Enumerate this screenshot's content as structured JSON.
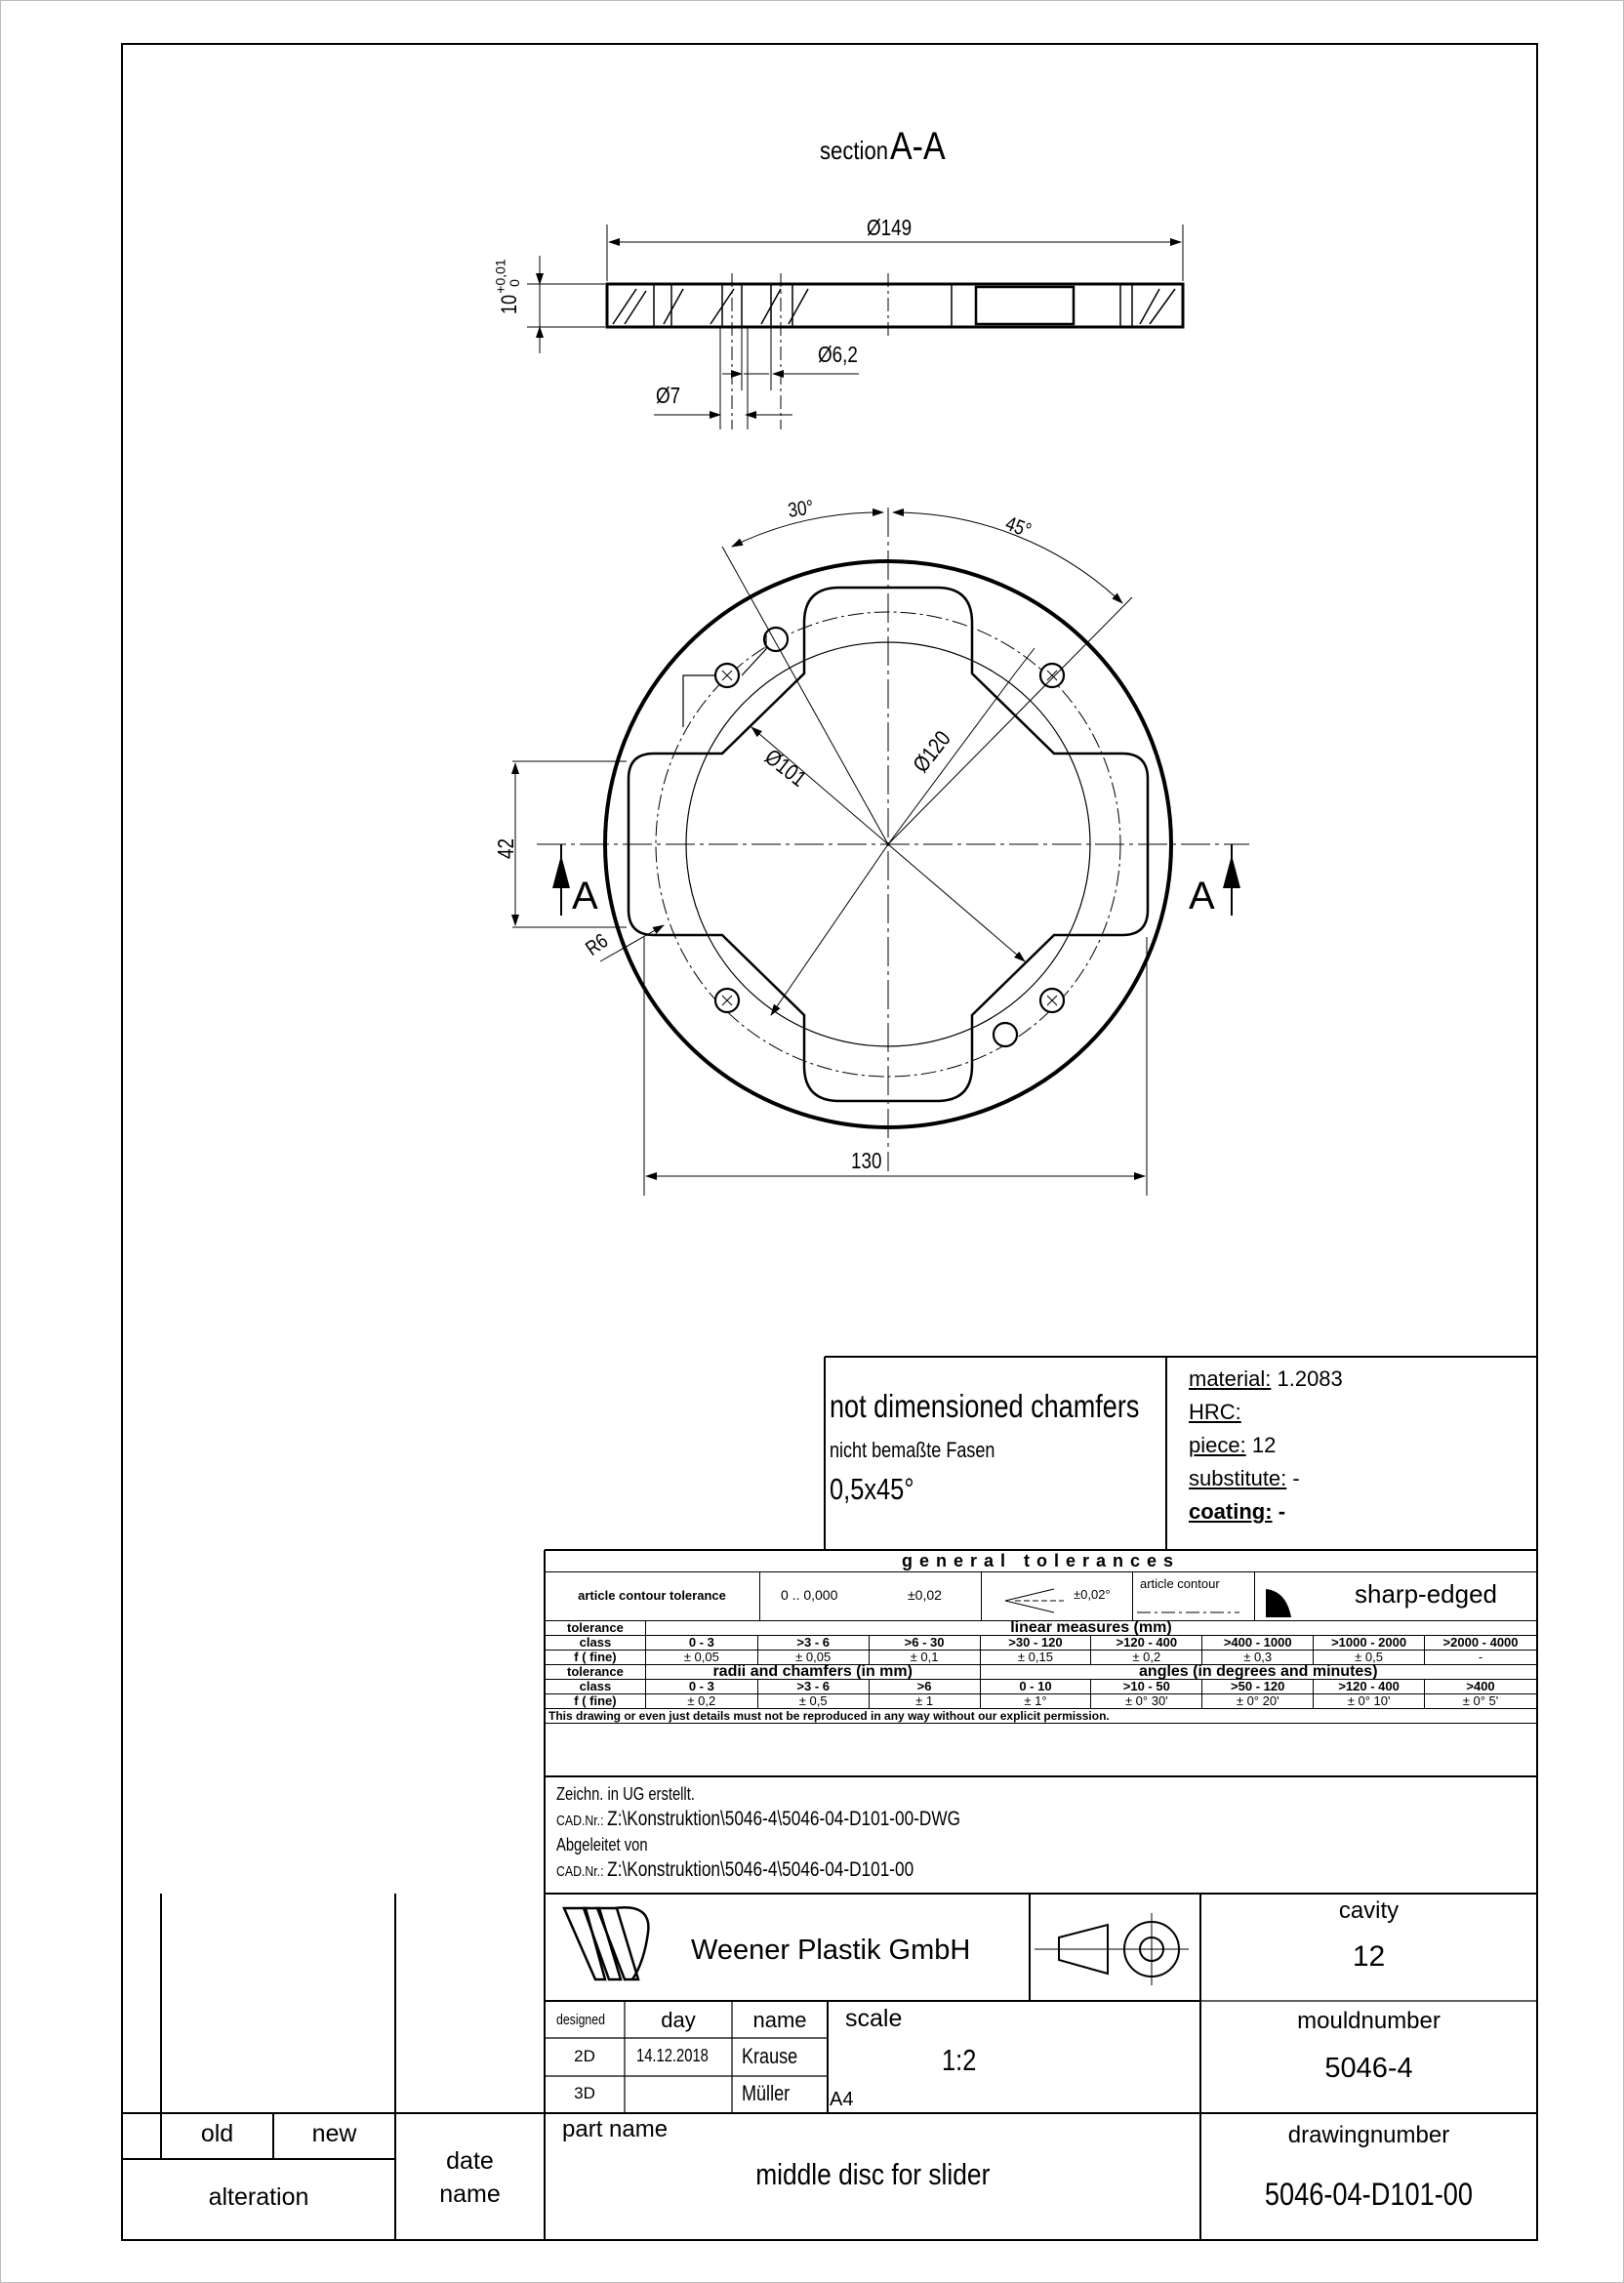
{
  "section": {
    "prefix": "section",
    "name": "A-A"
  },
  "section_view": {
    "dia_outer": "Ø149",
    "thickness_value": "10",
    "thickness_tol_upper": "+0,01",
    "thickness_tol_lower": "0",
    "dia_hole_small": "Ø6,2",
    "dia_hole_large": "Ø7"
  },
  "plan_view": {
    "angle_30": "30°",
    "angle_45": "45°",
    "dia_101": "Ø101",
    "dia_120": "Ø120",
    "dim_42": "42",
    "radius_r6": "R6",
    "width_130": "130",
    "cut_label_left": "A",
    "cut_label_right": "A"
  },
  "chamfers": {
    "title": "not dimensioned chamfers",
    "subtitle": "nicht bemaßte Fasen",
    "value": "0,5x45°"
  },
  "material": {
    "material_label": "material:",
    "material_value": "1.2083",
    "hrc_label": "HRC:",
    "piece_label": "piece:",
    "piece_value": "12",
    "substitute_label": "substitute:",
    "substitute_value": "-",
    "coating_label": "coating:",
    "coating_value": "-"
  },
  "tolerances": {
    "title": "general tolerances",
    "contour_label": "article contour tolerance",
    "contour_range": "0 .. 0,000",
    "contour_value": "±0,02",
    "angle_value": "±0,02°",
    "article_contour_label": "article contour",
    "sharp_edged": "sharp-edged",
    "tolerance_label": "tolerance",
    "class_label": "class",
    "fine_label": "f ( fine)",
    "linear_title": "linear measures (mm)",
    "linear_ranges": [
      "0 - 3",
      ">3 - 6",
      ">6 - 30",
      ">30 - 120",
      ">120 - 400",
      ">400 - 1000",
      ">1000 - 2000",
      ">2000 - 4000"
    ],
    "linear_values": [
      "± 0,05",
      "± 0,05",
      "± 0,1",
      "± 0,15",
      "± 0,2",
      "± 0,3",
      "± 0,5",
      "-"
    ],
    "radii_title": "radii and chamfers (in mm)",
    "radii_ranges": [
      "0 - 3",
      ">3 - 6",
      ">6"
    ],
    "radii_values": [
      "± 0,2",
      "± 0,5",
      "± 1"
    ],
    "angles_title": "angles (in degrees and minutes)",
    "angle_ranges": [
      "0 - 10",
      ">10 - 50",
      ">50 - 120",
      ">120 - 400",
      ">400"
    ],
    "angle_values": [
      "± 1°",
      "± 0° 30'",
      "± 0° 20'",
      "± 0° 10'",
      "± 0° 5'"
    ],
    "notice": "This drawing or even just details must not be reproduced in any way without our explicit permission."
  },
  "cad": {
    "line1": "Zeichn. in UG erstellt.",
    "line2_label": "CAD.Nr.:",
    "line2_value": "Z:\\Konstruktion\\5046-4\\5046-04-D101-00-DWG",
    "line3": "Abgeleitet von",
    "line4_label": "CAD.Nr.:",
    "line4_value": "Z:\\Konstruktion\\5046-4\\5046-04-D101-00"
  },
  "company": {
    "name": "Weener Plastik GmbH"
  },
  "cavity": {
    "label": "cavity",
    "value": "12"
  },
  "design": {
    "designed_label": "designed",
    "day_label": "day",
    "name_label": "name",
    "row2d_label": "2D",
    "row2d_day": "14.12.2018",
    "row2d_name": "Krause",
    "row3d_label": "3D",
    "row3d_name": "Müller"
  },
  "scale": {
    "label": "scale",
    "value": "1:2",
    "format": "A4"
  },
  "mould": {
    "label": "mouldnumber",
    "value": "5046-4"
  },
  "part": {
    "label": "part name",
    "value": "middle disc for slider"
  },
  "drawing": {
    "label": "drawingnumber",
    "value": "5046-04-D101-00"
  },
  "alteration": {
    "old": "old",
    "new": "new",
    "label": "alteration",
    "date": "date",
    "name": "name"
  }
}
